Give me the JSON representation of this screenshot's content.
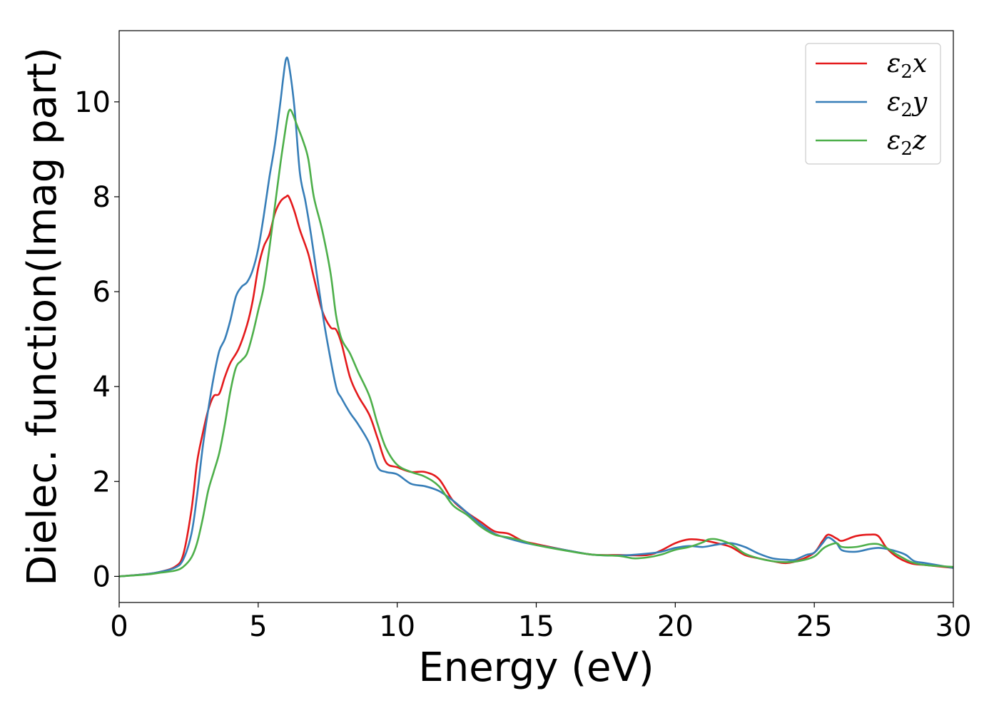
{
  "chart_data": {
    "type": "line",
    "title": "",
    "xlabel": "Energy (eV)",
    "ylabel": "Dielec. function(Imag part)",
    "xlim": [
      0,
      30
    ],
    "ylim": [
      -0.55,
      11.5
    ],
    "xticks": [
      "0",
      "5",
      "10",
      "15",
      "20",
      "25",
      "30"
    ],
    "yticks": [
      "0",
      "2",
      "4",
      "6",
      "8",
      "10"
    ],
    "grid": false,
    "legend_position": "top-right",
    "series": [
      {
        "name": "ε2x",
        "legend_base": "ε",
        "legend_sub": "2",
        "legend_suffix": "x",
        "color": "#e41a1c",
        "x": [
          0,
          1,
          1.5,
          2,
          2.3,
          2.6,
          2.8,
          3,
          3.2,
          3.4,
          3.6,
          3.8,
          4,
          4.3,
          4.6,
          4.8,
          5,
          5.2,
          5.4,
          5.6,
          5.8,
          6,
          6.1,
          6.3,
          6.5,
          6.8,
          7,
          7.3,
          7.6,
          7.8,
          8,
          8.3,
          8.6,
          9,
          9.3,
          9.6,
          10,
          10.5,
          11,
          11.5,
          12,
          12.5,
          13,
          13.5,
          14,
          14.5,
          15,
          16,
          17,
          18,
          19,
          19.5,
          20,
          20.5,
          21,
          21.5,
          22,
          22.5,
          23,
          23.5,
          24,
          24.5,
          25,
          25.3,
          25.5,
          25.8,
          26,
          26.5,
          27,
          27.3,
          27.6,
          28,
          28.5,
          29,
          30
        ],
        "y": [
          0,
          0.05,
          0.1,
          0.2,
          0.45,
          1.4,
          2.4,
          3.0,
          3.5,
          3.8,
          3.85,
          4.2,
          4.5,
          4.8,
          5.3,
          5.8,
          6.5,
          6.95,
          7.2,
          7.65,
          7.9,
          8.0,
          8.0,
          7.7,
          7.3,
          6.8,
          6.3,
          5.6,
          5.25,
          5.2,
          4.9,
          4.2,
          3.8,
          3.4,
          2.9,
          2.4,
          2.3,
          2.2,
          2.2,
          2.05,
          1.6,
          1.35,
          1.15,
          0.95,
          0.9,
          0.75,
          0.68,
          0.56,
          0.46,
          0.45,
          0.45,
          0.55,
          0.7,
          0.78,
          0.76,
          0.7,
          0.62,
          0.45,
          0.38,
          0.32,
          0.28,
          0.35,
          0.5,
          0.75,
          0.88,
          0.8,
          0.75,
          0.85,
          0.88,
          0.85,
          0.6,
          0.4,
          0.27,
          0.24,
          0.18
        ]
      },
      {
        "name": "ε2y",
        "legend_base": "ε",
        "legend_sub": "2",
        "legend_suffix": "y",
        "color": "#377eb8",
        "x": [
          0,
          1,
          1.5,
          2,
          2.3,
          2.6,
          2.8,
          3,
          3.2,
          3.4,
          3.6,
          3.8,
          4,
          4.2,
          4.4,
          4.6,
          4.8,
          5,
          5.2,
          5.4,
          5.6,
          5.8,
          5.9,
          6,
          6.1,
          6.3,
          6.5,
          6.7,
          6.9,
          7.1,
          7.3,
          7.5,
          7.8,
          8,
          8.3,
          8.6,
          9,
          9.3,
          9.6,
          10,
          10.5,
          11,
          11.5,
          12,
          12.5,
          13,
          13.5,
          14,
          14.5,
          15,
          16,
          17,
          18,
          19,
          19.5,
          20,
          20.5,
          21,
          21.5,
          22,
          22.5,
          23,
          23.5,
          24,
          24.3,
          24.7,
          25,
          25.3,
          25.5,
          25.8,
          26,
          26.5,
          27,
          27.3,
          27.6,
          28,
          28.3,
          28.6,
          29,
          30
        ],
        "y": [
          0,
          0.05,
          0.1,
          0.18,
          0.35,
          0.9,
          1.7,
          2.7,
          3.5,
          4.2,
          4.75,
          5.0,
          5.4,
          5.9,
          6.1,
          6.2,
          6.45,
          6.9,
          7.6,
          8.4,
          9.1,
          10.0,
          10.5,
          10.9,
          10.8,
          9.9,
          8.5,
          7.9,
          7.2,
          6.4,
          5.6,
          4.9,
          4.0,
          3.75,
          3.45,
          3.2,
          2.8,
          2.3,
          2.2,
          2.15,
          1.95,
          1.9,
          1.8,
          1.6,
          1.35,
          1.1,
          0.9,
          0.8,
          0.72,
          0.66,
          0.56,
          0.46,
          0.44,
          0.48,
          0.52,
          0.6,
          0.64,
          0.62,
          0.67,
          0.7,
          0.62,
          0.48,
          0.38,
          0.35,
          0.35,
          0.45,
          0.5,
          0.7,
          0.82,
          0.7,
          0.55,
          0.52,
          0.58,
          0.6,
          0.58,
          0.52,
          0.45,
          0.32,
          0.28,
          0.18
        ]
      },
      {
        "name": "ε2z",
        "legend_base": "ε",
        "legend_sub": "2",
        "legend_suffix": "z",
        "color": "#4daf4a",
        "x": [
          0,
          1,
          1.5,
          2,
          2.3,
          2.6,
          2.8,
          3,
          3.2,
          3.4,
          3.6,
          3.8,
          4,
          4.2,
          4.4,
          4.6,
          4.8,
          5,
          5.2,
          5.4,
          5.6,
          5.8,
          6,
          6.1,
          6.2,
          6.4,
          6.6,
          6.8,
          7,
          7.3,
          7.6,
          7.8,
          8,
          8.3,
          8.6,
          9,
          9.3,
          9.6,
          10,
          10.5,
          11,
          11.5,
          12,
          12.5,
          13,
          13.5,
          14,
          14.5,
          15,
          16,
          17,
          18,
          18.5,
          19,
          19.5,
          20,
          20.5,
          21,
          21.2,
          21.5,
          22,
          22.5,
          23,
          23.5,
          24,
          24.5,
          25,
          25.3,
          25.5,
          25.8,
          26,
          26.5,
          27,
          27.3,
          27.6,
          28,
          28.5,
          29,
          30
        ],
        "y": [
          0,
          0.04,
          0.08,
          0.12,
          0.2,
          0.4,
          0.7,
          1.2,
          1.8,
          2.2,
          2.6,
          3.2,
          3.9,
          4.4,
          4.55,
          4.7,
          5.1,
          5.6,
          6.1,
          6.9,
          7.8,
          8.7,
          9.5,
          9.8,
          9.8,
          9.5,
          9.2,
          8.8,
          8.0,
          7.3,
          6.4,
          5.5,
          5.0,
          4.7,
          4.3,
          3.8,
          3.2,
          2.7,
          2.35,
          2.2,
          2.1,
          1.9,
          1.5,
          1.3,
          1.05,
          0.88,
          0.82,
          0.75,
          0.66,
          0.55,
          0.46,
          0.43,
          0.38,
          0.4,
          0.46,
          0.56,
          0.62,
          0.72,
          0.78,
          0.78,
          0.68,
          0.48,
          0.38,
          0.32,
          0.3,
          0.33,
          0.42,
          0.58,
          0.65,
          0.7,
          0.62,
          0.62,
          0.68,
          0.68,
          0.6,
          0.45,
          0.3,
          0.24,
          0.2
        ]
      }
    ]
  }
}
